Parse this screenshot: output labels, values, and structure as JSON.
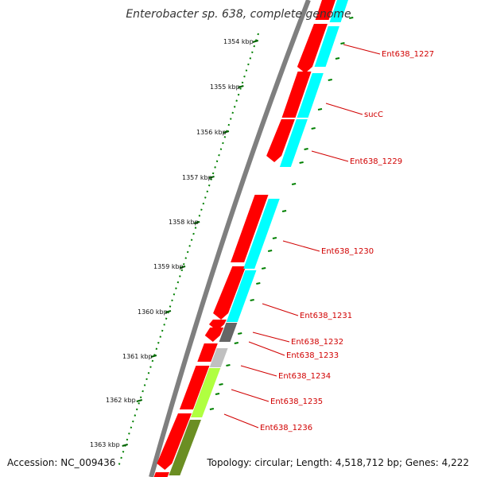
{
  "map": {
    "title": "Enterobacter sp. 638, complete genome",
    "accession": "Accession: NC_009436",
    "summary": "Topology: circular; Length: 4,518,712 bp; Genes: 4,222"
  },
  "colors": {
    "cds_forward": "#ff0000",
    "backbone": "#7f7f7f",
    "ruler_ticks": "#008000",
    "label_text": "#d10000",
    "cog_cyan": "#00ffff",
    "cog_dark_gray": "#666666",
    "cog_light_gray": "#c0c0c0",
    "cog_yellow_green": "#b0ff40",
    "cog_olive": "#6b8e23"
  },
  "scale": [
    {
      "label": "1354 kbp"
    },
    {
      "label": "1355 kbp"
    },
    {
      "label": "1356 kbp"
    },
    {
      "label": "1357 kbp"
    },
    {
      "label": "1358 kbp"
    },
    {
      "label": "1359 kbp"
    },
    {
      "label": "1360 kbp"
    },
    {
      "label": "1361 kbp"
    },
    {
      "label": "1362 kbp"
    },
    {
      "label": "1363 kbp"
    }
  ],
  "genes": [
    {
      "label": "Ent638_1227"
    },
    {
      "label": "sucC"
    },
    {
      "label": "Ent638_1229"
    },
    {
      "label": "Ent638_1230"
    },
    {
      "label": "Ent638_1231"
    },
    {
      "label": "Ent638_1232"
    },
    {
      "label": "Ent638_1233"
    },
    {
      "label": "Ent638_1234"
    },
    {
      "label": "Ent638_1235"
    },
    {
      "label": "Ent638_1236"
    }
  ]
}
